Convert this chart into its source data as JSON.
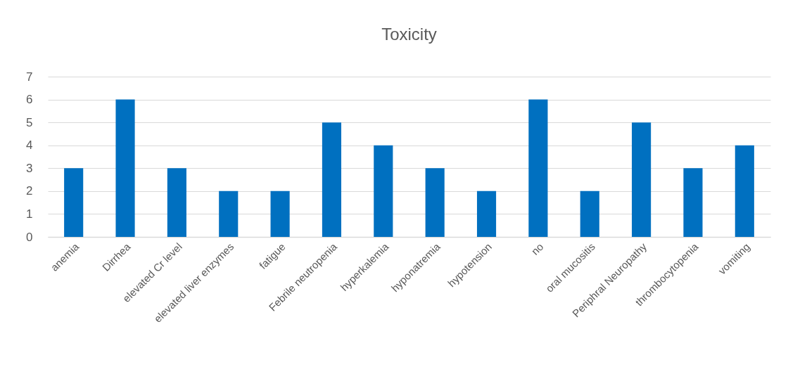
{
  "chart_data": {
    "type": "bar",
    "title": "Toxicity",
    "categories": [
      "anemia",
      "Dirrhea",
      "elevated Cr level",
      "elevated liver enzymes",
      "fatigue",
      "Febrile neutropenia",
      "hyperkalemia",
      "hyponatremia",
      "hypotension",
      "no",
      "oral mucositis",
      "Periphral Neuropathy",
      "thrombocytopenia",
      "vomiting"
    ],
    "values": [
      3,
      6,
      3,
      2,
      2,
      5,
      4,
      3,
      2,
      6,
      2,
      5,
      3,
      4
    ],
    "color": "#0070c0",
    "ylim": [
      0,
      7
    ],
    "yticks": [
      0,
      1,
      2,
      3,
      4,
      5,
      6,
      7
    ],
    "grid": "y"
  }
}
